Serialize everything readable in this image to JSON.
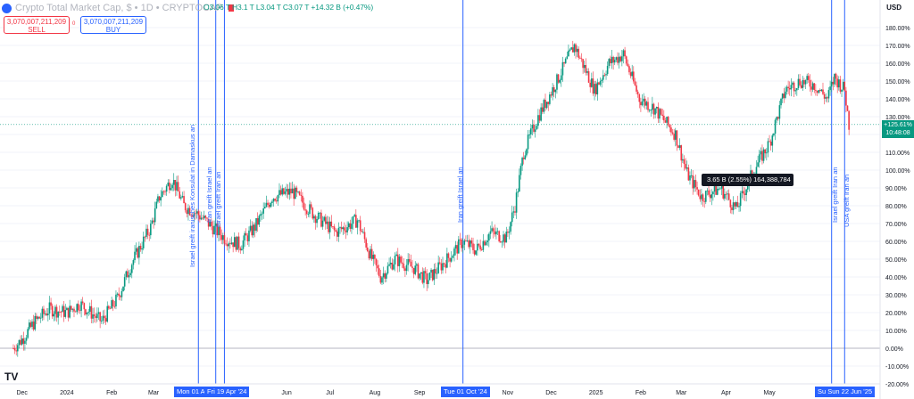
{
  "header": {
    "symbol_title": "Crypto Total Market Cap, $ • 1D • CRYPTOCAP",
    "ohlc": "O3.06 T  H3.1 T  L3.04 T  C3.07 T  +14.32 B (+0.47%)"
  },
  "trade": {
    "sell_price": "3,070,007,211,209",
    "sell_label": "SELL",
    "buy_price": "3,070,007,211,209",
    "buy_label": "BUY",
    "spread": "0"
  },
  "currency": "USD",
  "price_tag": {
    "value": "+125.61%",
    "countdown": "10:48:08"
  },
  "tooltip": "3.65 B (2.55%) 164,388,784",
  "annotations": [
    {
      "text": "Israel greift iranisches Konsulat in Damaskus an"
    },
    {
      "text": "Iran greift Israel an"
    },
    {
      "text": "Israel greift Iran an"
    },
    {
      "text": "Iran greift Israel an"
    },
    {
      "text": "Israel greift Iran an"
    },
    {
      "text": "USA greift Iran an"
    }
  ],
  "time_labels": {
    "apr1": "Mon 01 Apr '24",
    "apr19": "Fri 19 Apr '24",
    "oct1": "Tue 01 Oct '24",
    "jun": "Su  Sun 22 Jun '25"
  },
  "logo": "TV",
  "chart_data": {
    "type": "line",
    "title": "Crypto Total Market Cap, $ • 1D • CRYPTOCAP",
    "xlabel": "",
    "ylabel": "",
    "ylim": [
      -20,
      180
    ],
    "y_axis_unit": "%",
    "y_ticks": [
      180,
      170,
      160,
      150,
      140,
      130,
      120,
      110,
      100,
      90,
      80,
      70,
      60,
      50,
      40,
      30,
      20,
      10,
      0,
      -10,
      -20
    ],
    "x_tick_labels": [
      "Dec",
      "2024",
      "Feb",
      "Mar",
      "Jun",
      "Jul",
      "Aug",
      "Sep",
      "Nov",
      "Dec",
      "2025",
      "Feb",
      "Mar",
      "Apr",
      "May"
    ],
    "series": [
      {
        "x": [
          "2023-11-25",
          "2023-12-01",
          "2023-12-10",
          "2023-12-20",
          "2024-01-01",
          "2024-01-10",
          "2024-01-25",
          "2024-02-05",
          "2024-02-15",
          "2024-02-28",
          "2024-03-05",
          "2024-03-14",
          "2024-03-22",
          "2024-04-01",
          "2024-04-08",
          "2024-04-19",
          "2024-04-30",
          "2024-05-10",
          "2024-05-22",
          "2024-06-05",
          "2024-06-20",
          "2024-07-05",
          "2024-07-20",
          "2024-07-29",
          "2024-08-05",
          "2024-08-15",
          "2024-08-28",
          "2024-09-06",
          "2024-09-20",
          "2024-10-01",
          "2024-10-10",
          "2024-10-20",
          "2024-10-31",
          "2024-11-06",
          "2024-11-12",
          "2024-11-22",
          "2024-12-05",
          "2024-12-17",
          "2024-12-31",
          "2025-01-10",
          "2025-01-20",
          "2025-01-31",
          "2025-02-10",
          "2025-02-25",
          "2025-03-05",
          "2025-03-15",
          "2025-03-28",
          "2025-04-08",
          "2025-04-20",
          "2025-05-01",
          "2025-05-12",
          "2025-05-22",
          "2025-06-01",
          "2025-06-10",
          "2025-06-15",
          "2025-06-22",
          "2025-06-25"
        ],
        "values": [
          0,
          5,
          15,
          22,
          20,
          25,
          15,
          28,
          48,
          68,
          85,
          95,
          80,
          75,
          70,
          62,
          58,
          68,
          85,
          88,
          75,
          65,
          72,
          52,
          40,
          50,
          45,
          38,
          50,
          60,
          55,
          65,
          62,
          80,
          110,
          130,
          150,
          170,
          145,
          160,
          165,
          140,
          135,
          120,
          98,
          85,
          90,
          78,
          100,
          115,
          145,
          150,
          148,
          140,
          152,
          145,
          125.61
        ]
      }
    ],
    "price_scale": {
      "current_change": "+125.61%",
      "tooltip": "3.65 B (2.55%) 164,388,784"
    }
  }
}
